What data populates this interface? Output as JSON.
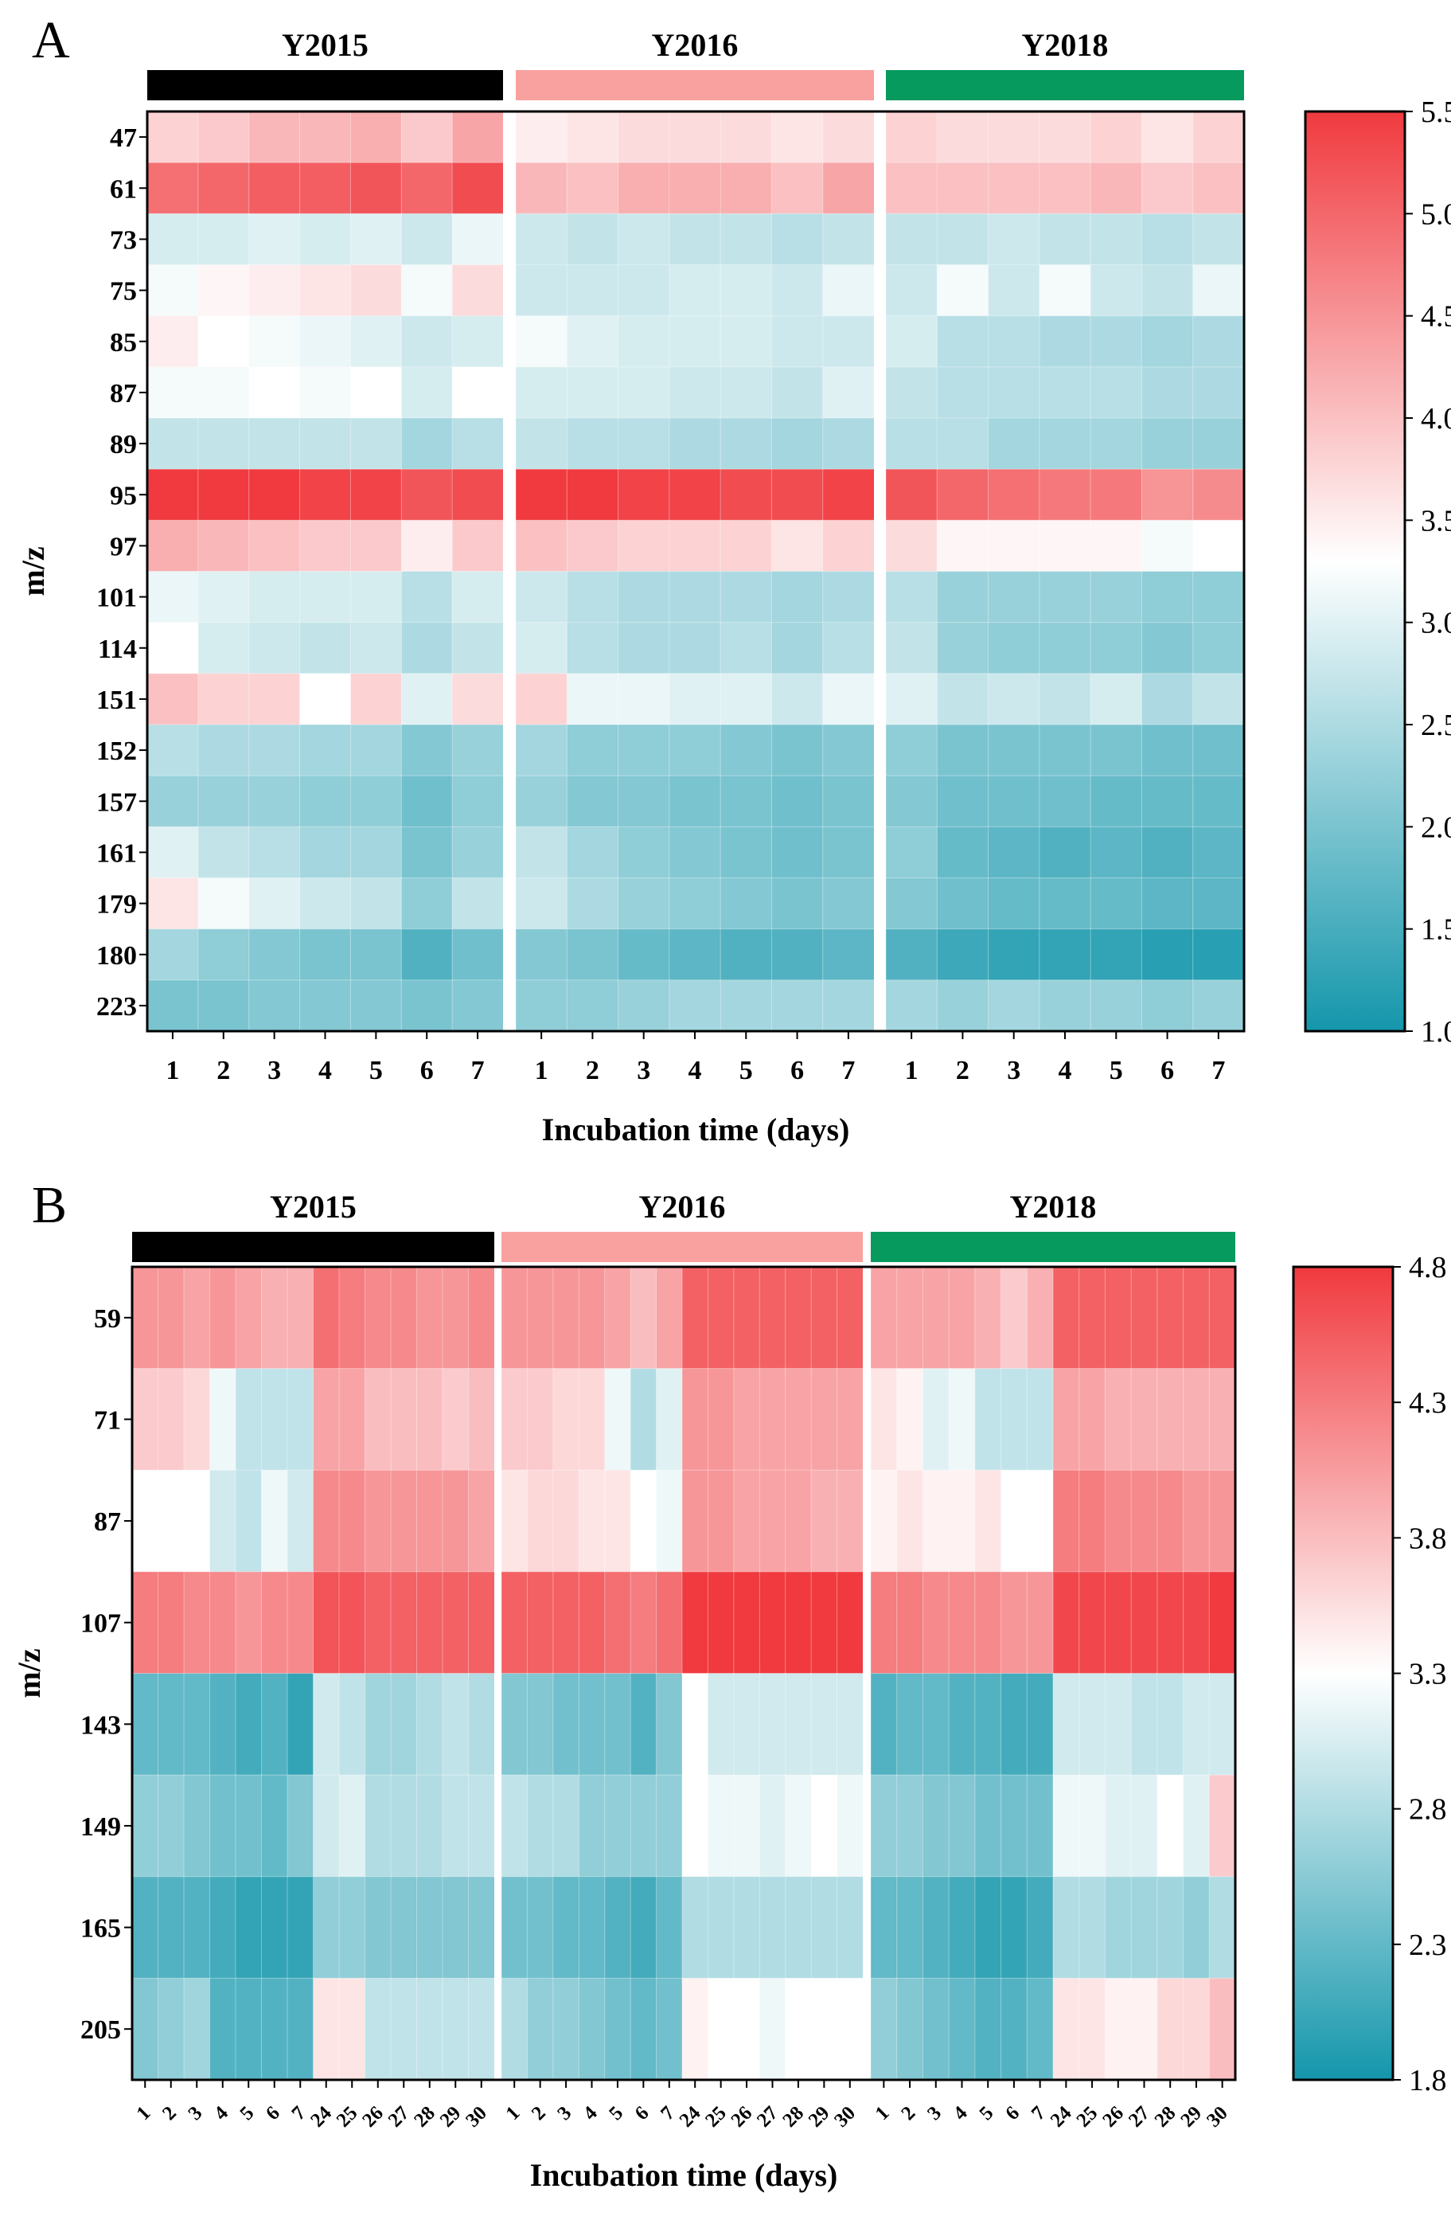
{
  "chart_data": [
    {
      "type": "heatmap",
      "panel": "A",
      "groups": [
        {
          "name": "Y2015",
          "color": "#000000"
        },
        {
          "name": "Y2016",
          "color": "#f9a19f"
        },
        {
          "name": "Y2018",
          "color": "#069a5e"
        }
      ],
      "columns": [
        "1",
        "2",
        "3",
        "4",
        "5",
        "6",
        "7"
      ],
      "rows": [
        "47",
        "61",
        "73",
        "75",
        "85",
        "87",
        "89",
        "95",
        "97",
        "101",
        "114",
        "151",
        "152",
        "157",
        "161",
        "179",
        "180",
        "223"
      ],
      "xlabel": "Incubation time (days)",
      "ylabel": "m/z",
      "colorbar": {
        "min": 1.0,
        "max": 5.5,
        "mid": 3.3,
        "ticks": [
          "1.0",
          "1.5",
          "2.0",
          "2.5",
          "3.0",
          "3.5",
          "4.0",
          "4.5",
          "5.0",
          "5.5"
        ],
        "low_color": "#1496ab",
        "mid_color": "#ffffff",
        "high_color": "#f03a3f"
      },
      "values": [
        [
          [
            3.8,
            3.9,
            4.1,
            4.1,
            4.2,
            3.9,
            4.3
          ],
          [
            4.9,
            5.0,
            5.1,
            5.1,
            5.2,
            5.0,
            5.3
          ],
          [
            2.9,
            2.9,
            3.0,
            2.9,
            3.0,
            2.8,
            3.1
          ],
          [
            3.2,
            3.4,
            3.5,
            3.6,
            3.7,
            3.2,
            3.7
          ],
          [
            3.5,
            3.3,
            3.2,
            3.1,
            3.0,
            2.8,
            2.9
          ],
          [
            3.2,
            3.2,
            3.3,
            3.2,
            3.3,
            2.9,
            3.3
          ],
          [
            2.7,
            2.7,
            2.7,
            2.7,
            2.7,
            2.4,
            2.6
          ],
          [
            5.5,
            5.5,
            5.5,
            5.4,
            5.4,
            5.2,
            5.3
          ],
          [
            4.2,
            4.1,
            4.0,
            3.9,
            3.9,
            3.5,
            3.9
          ],
          [
            3.1,
            3.0,
            2.9,
            2.9,
            2.9,
            2.6,
            2.9
          ],
          [
            3.3,
            2.9,
            2.8,
            2.7,
            2.8,
            2.5,
            2.7
          ],
          [
            4.0,
            3.8,
            3.8,
            3.3,
            3.8,
            3.0,
            3.7
          ],
          [
            2.6,
            2.5,
            2.5,
            2.4,
            2.4,
            2.1,
            2.3
          ],
          [
            2.3,
            2.3,
            2.3,
            2.2,
            2.2,
            1.9,
            2.2
          ],
          [
            3.0,
            2.7,
            2.6,
            2.4,
            2.4,
            2.0,
            2.3
          ],
          [
            3.6,
            3.2,
            3.0,
            2.8,
            2.7,
            2.2,
            2.7
          ],
          [
            2.4,
            2.2,
            2.1,
            2.0,
            2.0,
            1.6,
            1.9
          ],
          [
            2.0,
            2.0,
            2.1,
            2.1,
            2.1,
            2.0,
            2.1
          ]
        ],
        [
          [
            3.5,
            3.6,
            3.7,
            3.7,
            3.7,
            3.6,
            3.7
          ],
          [
            4.1,
            4.0,
            4.2,
            4.2,
            4.2,
            4.0,
            4.3
          ],
          [
            2.8,
            2.7,
            2.8,
            2.7,
            2.7,
            2.6,
            2.7
          ],
          [
            2.8,
            2.8,
            2.8,
            2.9,
            2.9,
            2.8,
            3.1
          ],
          [
            3.2,
            3.0,
            2.9,
            2.9,
            2.9,
            2.8,
            2.8
          ],
          [
            2.9,
            2.9,
            2.9,
            2.8,
            2.8,
            2.7,
            3.0
          ],
          [
            2.7,
            2.6,
            2.6,
            2.5,
            2.5,
            2.4,
            2.5
          ],
          [
            5.6,
            5.5,
            5.4,
            5.4,
            5.3,
            5.3,
            5.4
          ],
          [
            4.0,
            3.9,
            3.8,
            3.8,
            3.8,
            3.6,
            3.8
          ],
          [
            2.8,
            2.6,
            2.5,
            2.5,
            2.5,
            2.4,
            2.5
          ],
          [
            2.9,
            2.6,
            2.5,
            2.5,
            2.6,
            2.4,
            2.6
          ],
          [
            3.8,
            3.1,
            3.1,
            3.0,
            3.0,
            2.8,
            3.1
          ],
          [
            2.4,
            2.2,
            2.2,
            2.2,
            2.1,
            2.0,
            2.1
          ],
          [
            2.3,
            2.1,
            2.1,
            2.0,
            2.0,
            1.9,
            2.0
          ],
          [
            2.7,
            2.4,
            2.2,
            2.1,
            2.0,
            1.9,
            2.0
          ],
          [
            2.8,
            2.5,
            2.3,
            2.2,
            2.1,
            2.0,
            2.1
          ],
          [
            2.1,
            2.0,
            1.8,
            1.7,
            1.6,
            1.6,
            1.7
          ],
          [
            2.2,
            2.2,
            2.3,
            2.4,
            2.4,
            2.4,
            2.4
          ]
        ],
        [
          [
            3.8,
            3.7,
            3.7,
            3.7,
            3.8,
            3.6,
            3.8
          ],
          [
            4.0,
            4.0,
            4.0,
            4.0,
            4.1,
            3.9,
            4.0
          ],
          [
            2.7,
            2.7,
            2.8,
            2.7,
            2.7,
            2.6,
            2.7
          ],
          [
            2.8,
            3.2,
            2.8,
            3.2,
            2.8,
            2.7,
            3.1
          ],
          [
            2.9,
            2.6,
            2.6,
            2.5,
            2.5,
            2.4,
            2.5
          ],
          [
            2.7,
            2.6,
            2.6,
            2.6,
            2.6,
            2.5,
            2.5
          ],
          [
            2.6,
            2.6,
            2.4,
            2.4,
            2.4,
            2.3,
            2.3
          ],
          [
            5.2,
            5.0,
            4.9,
            4.8,
            4.8,
            4.5,
            4.6
          ],
          [
            3.7,
            3.4,
            3.4,
            3.4,
            3.4,
            3.2,
            3.3
          ],
          [
            2.6,
            2.3,
            2.3,
            2.3,
            2.3,
            2.2,
            2.2
          ],
          [
            2.7,
            2.3,
            2.2,
            2.2,
            2.2,
            2.1,
            2.2
          ],
          [
            3.0,
            2.7,
            2.8,
            2.7,
            2.9,
            2.5,
            2.7
          ],
          [
            2.2,
            2.0,
            2.0,
            2.0,
            2.0,
            1.9,
            1.9
          ],
          [
            2.1,
            1.9,
            1.9,
            1.9,
            1.8,
            1.8,
            1.8
          ],
          [
            2.2,
            1.8,
            1.7,
            1.6,
            1.7,
            1.6,
            1.7
          ],
          [
            2.1,
            1.9,
            1.8,
            1.8,
            1.8,
            1.7,
            1.7
          ],
          [
            1.6,
            1.4,
            1.3,
            1.3,
            1.3,
            1.2,
            1.2
          ],
          [
            2.4,
            2.3,
            2.4,
            2.3,
            2.3,
            2.2,
            2.3
          ]
        ]
      ]
    },
    {
      "type": "heatmap",
      "panel": "B",
      "groups": [
        {
          "name": "Y2015",
          "color": "#000000"
        },
        {
          "name": "Y2016",
          "color": "#f9a19f"
        },
        {
          "name": "Y2018",
          "color": "#069a5e"
        }
      ],
      "columns": [
        "1",
        "2",
        "3",
        "4",
        "5",
        "6",
        "7",
        "24",
        "25",
        "26",
        "27",
        "28",
        "29",
        "30"
      ],
      "rows": [
        "59",
        "71",
        "87",
        "107",
        "143",
        "149",
        "165",
        "205"
      ],
      "xlabel": "Incubation time (days)",
      "ylabel": "m/z",
      "colorbar": {
        "min": 1.8,
        "max": 4.8,
        "mid": 3.3,
        "ticks": [
          "1.8",
          "2.3",
          "2.8",
          "3.3",
          "3.8",
          "4.3",
          "4.8"
        ],
        "low_color": "#1496ab",
        "mid_color": "#ffffff",
        "high_color": "#f03a3f"
      },
      "values": [
        [
          [
            4.1,
            4.1,
            4.0,
            4.1,
            4.0,
            3.9,
            3.9,
            4.4,
            4.3,
            4.2,
            4.2,
            4.1,
            4.1,
            4.2
          ],
          [
            3.7,
            3.7,
            3.6,
            3.2,
            2.9,
            2.9,
            2.9,
            4.0,
            4.0,
            3.8,
            3.8,
            3.8,
            3.7,
            3.8
          ],
          [
            3.3,
            3.3,
            3.3,
            3.0,
            2.9,
            3.2,
            3.0,
            4.2,
            4.2,
            4.1,
            4.1,
            4.1,
            4.1,
            4.0
          ],
          [
            4.3,
            4.3,
            4.2,
            4.2,
            4.1,
            4.2,
            4.2,
            4.6,
            4.6,
            4.5,
            4.5,
            4.5,
            4.5,
            4.5
          ],
          [
            2.3,
            2.3,
            2.3,
            2.2,
            2.1,
            2.2,
            2.0,
            3.0,
            2.9,
            2.7,
            2.7,
            2.8,
            2.9,
            2.8
          ],
          [
            2.6,
            2.6,
            2.5,
            2.4,
            2.4,
            2.3,
            2.5,
            3.0,
            3.1,
            2.8,
            2.8,
            2.8,
            2.9,
            2.9
          ],
          [
            2.2,
            2.2,
            2.2,
            2.1,
            2.0,
            2.0,
            2.0,
            2.6,
            2.6,
            2.5,
            2.5,
            2.5,
            2.5,
            2.5
          ],
          [
            2.5,
            2.6,
            2.7,
            2.2,
            2.2,
            2.2,
            2.2,
            3.5,
            3.5,
            2.9,
            2.9,
            2.9,
            2.9,
            2.9
          ]
        ],
        [
          [
            4.1,
            4.1,
            4.1,
            4.1,
            4.0,
            3.8,
            4.0,
            4.5,
            4.5,
            4.5,
            4.5,
            4.5,
            4.5,
            4.5
          ],
          [
            3.7,
            3.7,
            3.6,
            3.6,
            3.2,
            2.8,
            3.1,
            4.1,
            4.1,
            4.0,
            4.0,
            4.0,
            4.0,
            4.0
          ],
          [
            3.5,
            3.6,
            3.6,
            3.5,
            3.5,
            3.3,
            3.2,
            4.1,
            4.1,
            4.0,
            4.0,
            4.0,
            3.9,
            3.9
          ],
          [
            4.5,
            4.5,
            4.5,
            4.5,
            4.4,
            4.3,
            4.4,
            4.8,
            4.8,
            4.8,
            4.8,
            4.8,
            4.8,
            4.8
          ],
          [
            2.5,
            2.5,
            2.4,
            2.4,
            2.4,
            2.2,
            2.5,
            3.3,
            3.0,
            3.0,
            3.0,
            3.0,
            3.0,
            3.0
          ],
          [
            2.9,
            2.8,
            2.8,
            2.6,
            2.6,
            2.6,
            2.6,
            3.3,
            3.2,
            3.2,
            3.1,
            3.2,
            3.3,
            3.2
          ],
          [
            2.4,
            2.4,
            2.3,
            2.3,
            2.2,
            2.1,
            2.3,
            2.8,
            2.8,
            2.8,
            2.8,
            2.8,
            2.8,
            2.8
          ],
          [
            2.8,
            2.6,
            2.6,
            2.5,
            2.4,
            2.3,
            2.4,
            3.4,
            3.3,
            3.3,
            3.2,
            3.3,
            3.3,
            3.3
          ]
        ],
        [
          [
            4.0,
            4.0,
            4.0,
            4.0,
            3.9,
            3.7,
            3.9,
            4.5,
            4.5,
            4.5,
            4.5,
            4.5,
            4.5,
            4.5
          ],
          [
            3.5,
            3.4,
            3.1,
            3.2,
            2.9,
            2.9,
            2.9,
            4.0,
            4.0,
            3.9,
            3.9,
            3.9,
            3.9,
            3.9
          ],
          [
            3.4,
            3.5,
            3.4,
            3.4,
            3.5,
            3.3,
            3.3,
            4.3,
            4.3,
            4.2,
            4.2,
            4.2,
            4.1,
            4.1
          ],
          [
            4.3,
            4.3,
            4.2,
            4.2,
            4.2,
            4.1,
            4.1,
            4.7,
            4.7,
            4.7,
            4.7,
            4.7,
            4.7,
            4.8
          ],
          [
            2.2,
            2.3,
            2.3,
            2.2,
            2.2,
            2.1,
            2.1,
            3.0,
            3.0,
            3.0,
            2.9,
            2.9,
            3.0,
            3.0
          ],
          [
            2.6,
            2.6,
            2.5,
            2.5,
            2.4,
            2.4,
            2.4,
            3.2,
            3.2,
            3.1,
            3.1,
            3.3,
            3.1,
            3.7
          ],
          [
            2.3,
            2.3,
            2.2,
            2.1,
            2.0,
            2.0,
            2.1,
            2.8,
            2.8,
            2.7,
            2.7,
            2.7,
            2.6,
            2.8
          ],
          [
            2.6,
            2.5,
            2.4,
            2.3,
            2.2,
            2.2,
            2.3,
            3.5,
            3.5,
            3.4,
            3.4,
            3.6,
            3.6,
            3.8
          ]
        ]
      ]
    }
  ]
}
